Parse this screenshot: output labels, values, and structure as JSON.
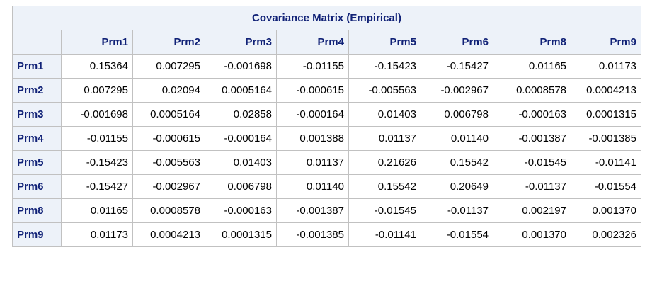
{
  "title": "Covariance Matrix (Empirical)",
  "columns": [
    "Prm1",
    "Prm2",
    "Prm3",
    "Prm4",
    "Prm5",
    "Prm6",
    "Prm8",
    "Prm9"
  ],
  "rows": [
    {
      "label": "Prm1",
      "values": [
        "0.15364",
        "0.007295",
        "-0.001698",
        "-0.01155",
        "-0.15423",
        "-0.15427",
        "0.01165",
        "0.01173"
      ]
    },
    {
      "label": "Prm2",
      "values": [
        "0.007295",
        "0.02094",
        "0.0005164",
        "-0.000615",
        "-0.005563",
        "-0.002967",
        "0.0008578",
        "0.0004213"
      ]
    },
    {
      "label": "Prm3",
      "values": [
        "-0.001698",
        "0.0005164",
        "0.02858",
        "-0.000164",
        "0.01403",
        "0.006798",
        "-0.000163",
        "0.0001315"
      ]
    },
    {
      "label": "Prm4",
      "values": [
        "-0.01155",
        "-0.000615",
        "-0.000164",
        "0.001388",
        "0.01137",
        "0.01140",
        "-0.001387",
        "-0.001385"
      ]
    },
    {
      "label": "Prm5",
      "values": [
        "-0.15423",
        "-0.005563",
        "0.01403",
        "0.01137",
        "0.21626",
        "0.15542",
        "-0.01545",
        "-0.01141"
      ]
    },
    {
      "label": "Prm6",
      "values": [
        "-0.15427",
        "-0.002967",
        "0.006798",
        "0.01140",
        "0.15542",
        "0.20649",
        "-0.01137",
        "-0.01554"
      ]
    },
    {
      "label": "Prm8",
      "values": [
        "0.01165",
        "0.0008578",
        "-0.000163",
        "-0.001387",
        "-0.01545",
        "-0.01137",
        "0.002197",
        "0.001370"
      ]
    },
    {
      "label": "Prm9",
      "values": [
        "0.01173",
        "0.0004213",
        "0.0001315",
        "-0.001385",
        "-0.01141",
        "-0.01554",
        "0.001370",
        "0.002326"
      ]
    }
  ],
  "colors": {
    "header_bg": "#edf2f9",
    "header_text": "#112277",
    "border": "#c1c1c1"
  }
}
